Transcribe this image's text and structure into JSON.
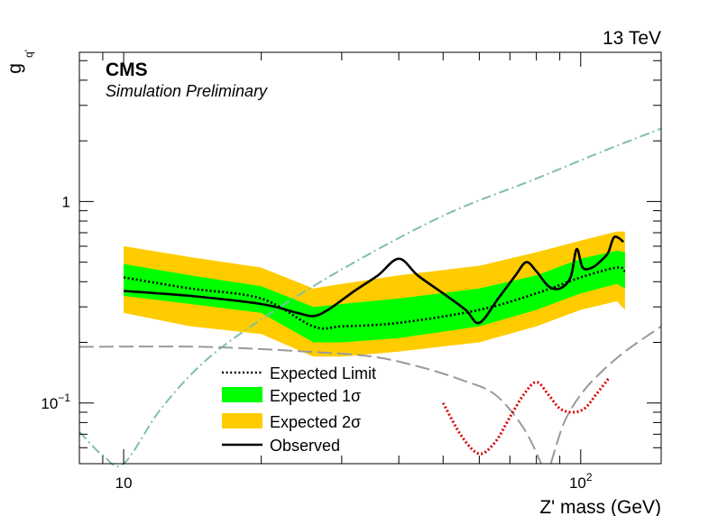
{
  "chart_data": {
    "type": "area",
    "energy_label": "13 TeV",
    "experiment": "CMS",
    "experiment_subtitle": "Simulation Preliminary",
    "xlabel": "Z' mass (GeV)",
    "ylabel": "g",
    "ylabel_sub": "q'",
    "x_scale": "log",
    "y_scale": "log",
    "xlim": [
      8,
      150
    ],
    "ylim": [
      0.05,
      5.5
    ],
    "x_ticks": [
      {
        "value": 10,
        "label": "10"
      },
      {
        "value": 100,
        "label": "10",
        "exponent": "2"
      }
    ],
    "y_ticks": [
      {
        "value": 0.1,
        "label": "10",
        "exponent": "−1"
      },
      {
        "value": 1,
        "label": "1"
      }
    ],
    "legend": {
      "placement": "bottom-center",
      "entries": [
        {
          "key": "expected",
          "label": "Expected Limit"
        },
        {
          "key": "band1",
          "label": "Expected 1σ"
        },
        {
          "key": "band2",
          "label": "Expected 2σ"
        },
        {
          "key": "observed",
          "label": "Observed"
        }
      ]
    },
    "colors": {
      "band1": "#00ff00",
      "band2": "#ffcc00",
      "expected": "#000000",
      "observed": "#000000",
      "diag_teal": "#7fbfa8",
      "diag_gray": "#999999",
      "red_dotted": "#dd0000"
    },
    "series": [
      {
        "key": "band2",
        "x": [
          10,
          14,
          20,
          26,
          30,
          40,
          60,
          80,
          100,
          120,
          125
        ],
        "upper": [
          0.6,
          0.53,
          0.47,
          0.37,
          0.39,
          0.43,
          0.48,
          0.56,
          0.64,
          0.71,
          0.71
        ],
        "lower": [
          0.28,
          0.24,
          0.22,
          0.17,
          0.17,
          0.18,
          0.2,
          0.24,
          0.29,
          0.32,
          0.29
        ]
      },
      {
        "key": "band1",
        "x": [
          10,
          14,
          20,
          26,
          30,
          40,
          60,
          80,
          100,
          120,
          125
        ],
        "upper": [
          0.49,
          0.43,
          0.38,
          0.3,
          0.31,
          0.33,
          0.37,
          0.43,
          0.52,
          0.57,
          0.56
        ],
        "lower": [
          0.34,
          0.31,
          0.28,
          0.2,
          0.2,
          0.21,
          0.24,
          0.29,
          0.35,
          0.39,
          0.37
        ]
      },
      {
        "key": "expected",
        "x": [
          10,
          14,
          20,
          26,
          30,
          40,
          60,
          80,
          100,
          120,
          125
        ],
        "y": [
          0.42,
          0.37,
          0.33,
          0.24,
          0.24,
          0.25,
          0.29,
          0.35,
          0.42,
          0.47,
          0.45
        ]
      },
      {
        "key": "observed",
        "x": [
          10,
          14,
          20,
          24,
          26,
          28,
          32,
          36,
          40,
          44,
          50,
          56,
          60,
          66,
          72,
          76,
          80,
          85,
          90,
          95,
          98,
          101,
          106,
          112,
          115,
          118,
          121,
          124
        ],
        "y": [
          0.36,
          0.34,
          0.31,
          0.28,
          0.27,
          0.29,
          0.36,
          0.43,
          0.52,
          0.43,
          0.35,
          0.29,
          0.25,
          0.33,
          0.43,
          0.5,
          0.45,
          0.38,
          0.37,
          0.42,
          0.58,
          0.47,
          0.47,
          0.52,
          0.56,
          0.66,
          0.66,
          0.63
        ]
      },
      {
        "key": "diag_teal",
        "style": "dash-dot",
        "x": [
          8,
          9,
          10,
          12,
          15,
          20,
          30,
          50,
          80,
          110,
          150
        ],
        "y": [
          0.072,
          0.055,
          0.05,
          0.092,
          0.16,
          0.26,
          0.46,
          0.85,
          1.3,
          1.75,
          2.3
        ]
      },
      {
        "key": "diag_gray_falling",
        "style": "long-dash",
        "x": [
          8,
          15,
          25,
          35,
          45,
          55,
          65,
          75,
          82
        ],
        "y": [
          0.19,
          0.19,
          0.18,
          0.17,
          0.15,
          0.13,
          0.11,
          0.075,
          0.05
        ]
      },
      {
        "key": "diag_gray_rising",
        "style": "long-dash",
        "x": [
          86,
          92,
          100,
          110,
          125,
          150
        ],
        "y": [
          0.05,
          0.08,
          0.11,
          0.14,
          0.18,
          0.24
        ]
      },
      {
        "key": "red_dotted",
        "style": "dotted",
        "x": [
          50,
          55,
          60,
          65,
          70,
          75,
          80,
          85,
          90,
          96,
          102,
          108,
          115
        ],
        "y": [
          0.1,
          0.068,
          0.056,
          0.064,
          0.085,
          0.11,
          0.127,
          0.11,
          0.094,
          0.09,
          0.094,
          0.11,
          0.132
        ]
      }
    ]
  }
}
